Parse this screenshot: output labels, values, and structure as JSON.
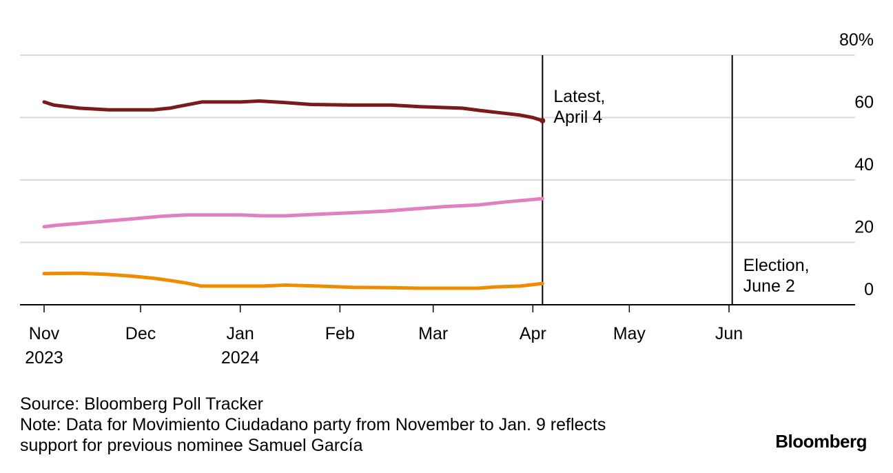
{
  "chart_data": {
    "type": "line",
    "y_unit_label": "80%",
    "ylim": [
      0,
      80
    ],
    "y_ticks": [
      {
        "value": 80,
        "label": "80%"
      },
      {
        "value": 60,
        "label": "60"
      },
      {
        "value": 40,
        "label": "40"
      },
      {
        "value": 20,
        "label": "20"
      },
      {
        "value": 0,
        "label": "0"
      }
    ],
    "xlim": [
      "2023-11-01",
      "2024-07-15"
    ],
    "x_ticks": [
      {
        "date": "2023-11-01",
        "label": "Nov",
        "sublabel": "2023"
      },
      {
        "date": "2023-12-01",
        "label": "Dec",
        "sublabel": ""
      },
      {
        "date": "2024-01-01",
        "label": "Jan",
        "sublabel": "2024"
      },
      {
        "date": "2024-02-01",
        "label": "Feb",
        "sublabel": ""
      },
      {
        "date": "2024-03-01",
        "label": "Mar",
        "sublabel": ""
      },
      {
        "date": "2024-04-01",
        "label": "Apr",
        "sublabel": ""
      },
      {
        "date": "2024-05-01",
        "label": "May",
        "sublabel": ""
      },
      {
        "date": "2024-06-01",
        "label": "Jun",
        "sublabel": ""
      }
    ],
    "grid": true,
    "legend": "none",
    "annotations": [
      {
        "date": "2024-04-04",
        "line1": "Latest,",
        "line2": "April 4"
      },
      {
        "date": "2024-06-02",
        "line1": "Election,",
        "line2": "June 2"
      }
    ],
    "series": [
      {
        "color": "#7a1a1c",
        "end_marker": true,
        "points": [
          [
            "2023-11-01",
            65
          ],
          [
            "2023-11-04",
            64
          ],
          [
            "2023-11-12",
            63
          ],
          [
            "2023-11-21",
            62.5
          ],
          [
            "2023-12-05",
            62.5
          ],
          [
            "2023-12-10",
            63
          ],
          [
            "2023-12-15",
            64
          ],
          [
            "2023-12-20",
            65
          ],
          [
            "2024-01-01",
            65
          ],
          [
            "2024-01-07",
            65.3
          ],
          [
            "2024-01-15",
            64.8
          ],
          [
            "2024-01-23",
            64.2
          ],
          [
            "2024-02-05",
            64
          ],
          [
            "2024-02-17",
            64
          ],
          [
            "2024-02-26",
            63.5
          ],
          [
            "2024-03-10",
            63
          ],
          [
            "2024-03-16",
            62.2
          ],
          [
            "2024-03-22",
            61.5
          ],
          [
            "2024-03-28",
            60.8
          ],
          [
            "2024-04-01",
            60
          ],
          [
            "2024-04-04",
            59
          ]
        ]
      },
      {
        "color": "#e080c0",
        "end_marker": false,
        "points": [
          [
            "2023-11-01",
            25
          ],
          [
            "2023-11-05",
            25.5
          ],
          [
            "2023-11-11",
            26
          ],
          [
            "2023-11-20",
            26.8
          ],
          [
            "2023-11-28",
            27.5
          ],
          [
            "2023-12-07",
            28.3
          ],
          [
            "2023-12-15",
            28.8
          ],
          [
            "2024-01-01",
            28.8
          ],
          [
            "2024-01-08",
            28.5
          ],
          [
            "2024-01-15",
            28.5
          ],
          [
            "2024-01-25",
            29
          ],
          [
            "2024-02-05",
            29.5
          ],
          [
            "2024-02-15",
            30
          ],
          [
            "2024-02-25",
            30.8
          ],
          [
            "2024-03-05",
            31.5
          ],
          [
            "2024-03-15",
            32
          ],
          [
            "2024-03-24",
            33
          ],
          [
            "2024-04-04",
            34
          ]
        ]
      },
      {
        "color": "#f08c00",
        "end_marker": false,
        "points": [
          [
            "2023-11-01",
            10
          ],
          [
            "2023-11-12",
            10.1
          ],
          [
            "2023-11-20",
            9.8
          ],
          [
            "2023-11-28",
            9.2
          ],
          [
            "2023-12-05",
            8.5
          ],
          [
            "2023-12-10",
            7.8
          ],
          [
            "2023-12-15",
            7
          ],
          [
            "2023-12-20",
            6
          ],
          [
            "2024-01-01",
            6
          ],
          [
            "2024-01-08",
            6
          ],
          [
            "2024-01-15",
            6.3
          ],
          [
            "2024-01-25",
            6
          ],
          [
            "2024-02-05",
            5.6
          ],
          [
            "2024-02-15",
            5.5
          ],
          [
            "2024-02-26",
            5.3
          ],
          [
            "2024-03-15",
            5.3
          ],
          [
            "2024-03-20",
            5.7
          ],
          [
            "2024-03-28",
            6
          ],
          [
            "2024-04-04",
            6.8
          ]
        ]
      }
    ]
  },
  "footer": {
    "source": "Source: Bloomberg Poll Tracker",
    "note_line1": "Note: Data for Movimiento Ciudadano party from November to Jan. 9 reflects",
    "note_line2": "support for previous nominee Samuel García"
  },
  "brand": "Bloomberg"
}
